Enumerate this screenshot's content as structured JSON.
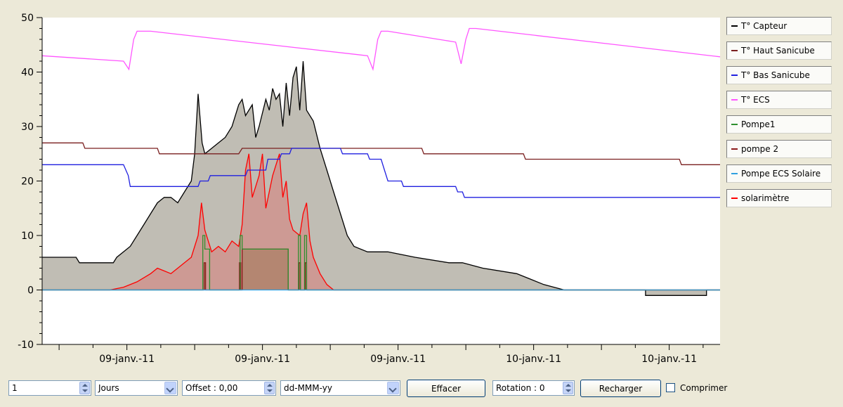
{
  "chart_data": {
    "type": "line",
    "title": "",
    "xlabel": "",
    "ylabel": "",
    "ylim": [
      -10,
      50
    ],
    "yticks": [
      -10,
      0,
      10,
      20,
      30,
      40,
      50
    ],
    "xlim": [
      0,
      100
    ],
    "xtick_labels": [
      {
        "x": 12.5,
        "label": "09-janv.-11"
      },
      {
        "x": 32.5,
        "label": "09-janv.-11"
      },
      {
        "x": 52.5,
        "label": "09-janv.-11"
      },
      {
        "x": 72.5,
        "label": "10-janv.-11"
      },
      {
        "x": 92.5,
        "label": "10-janv.-11"
      }
    ],
    "grid": false,
    "legend_position": "right",
    "series": [
      {
        "name": "T° Capteur",
        "color": "#000000",
        "fill": "#c0bdb4",
        "points": [
          [
            0,
            6
          ],
          [
            5,
            6
          ],
          [
            5.5,
            5
          ],
          [
            10.5,
            5
          ],
          [
            11,
            6
          ],
          [
            12,
            7
          ],
          [
            13,
            8
          ],
          [
            14,
            10
          ],
          [
            15,
            12
          ],
          [
            16,
            14
          ],
          [
            17,
            16
          ],
          [
            18,
            17
          ],
          [
            19,
            17
          ],
          [
            20,
            16
          ],
          [
            21,
            18
          ],
          [
            22,
            20
          ],
          [
            22.5,
            25
          ],
          [
            23,
            36
          ],
          [
            23.6,
            27
          ],
          [
            24,
            25
          ],
          [
            25,
            26
          ],
          [
            26,
            27
          ],
          [
            27,
            28
          ],
          [
            28,
            30
          ],
          [
            29,
            34
          ],
          [
            29.5,
            35
          ],
          [
            30,
            32
          ],
          [
            31,
            34
          ],
          [
            31.5,
            28
          ],
          [
            32,
            30
          ],
          [
            33,
            35
          ],
          [
            33.5,
            33
          ],
          [
            34,
            37
          ],
          [
            34.5,
            35
          ],
          [
            35,
            36
          ],
          [
            35.5,
            30
          ],
          [
            36,
            38
          ],
          [
            36.5,
            32
          ],
          [
            37,
            39
          ],
          [
            37.5,
            41
          ],
          [
            38,
            33
          ],
          [
            38.5,
            42
          ],
          [
            39,
            33
          ],
          [
            40,
            31
          ],
          [
            41,
            26
          ],
          [
            42,
            22
          ],
          [
            43,
            18
          ],
          [
            44,
            14
          ],
          [
            45,
            10
          ],
          [
            46,
            8
          ],
          [
            48,
            7
          ],
          [
            51,
            7
          ],
          [
            55,
            6
          ],
          [
            60,
            5
          ],
          [
            62,
            5
          ],
          [
            65,
            4
          ],
          [
            70,
            3
          ],
          [
            72,
            2
          ],
          [
            74,
            1
          ],
          [
            77,
            0
          ],
          [
            89,
            0
          ],
          [
            89,
            -1
          ],
          [
            98,
            -1
          ],
          [
            98,
            0
          ],
          [
            100,
            0
          ]
        ]
      },
      {
        "name": "T° Haut Sanicube",
        "color": "#7a1f1f",
        "fill": null,
        "points": [
          [
            0,
            27
          ],
          [
            6,
            27
          ],
          [
            6.3,
            26
          ],
          [
            17,
            26
          ],
          [
            17.3,
            25
          ],
          [
            29,
            25
          ],
          [
            29.5,
            26
          ],
          [
            56,
            26
          ],
          [
            56.3,
            25
          ],
          [
            71,
            25
          ],
          [
            71.3,
            24
          ],
          [
            94,
            24
          ],
          [
            94.3,
            23
          ],
          [
            100,
            23
          ]
        ]
      },
      {
        "name": "T° Bas Sanicube",
        "color": "#2020e0",
        "fill": null,
        "points": [
          [
            0,
            23
          ],
          [
            12,
            23
          ],
          [
            12.7,
            21
          ],
          [
            13,
            19
          ],
          [
            15,
            19
          ],
          [
            15.3,
            19
          ],
          [
            23,
            19
          ],
          [
            23.3,
            20
          ],
          [
            24.5,
            20
          ],
          [
            24.8,
            21
          ],
          [
            30,
            21
          ],
          [
            30.3,
            22
          ],
          [
            33,
            22
          ],
          [
            33.3,
            24
          ],
          [
            35,
            24
          ],
          [
            35.3,
            25
          ],
          [
            36.5,
            25
          ],
          [
            36.8,
            26
          ],
          [
            44,
            26
          ],
          [
            44.3,
            25
          ],
          [
            48,
            25
          ],
          [
            48.3,
            24
          ],
          [
            50,
            24
          ],
          [
            50.5,
            22
          ],
          [
            51,
            20
          ],
          [
            53,
            20
          ],
          [
            53.3,
            19
          ],
          [
            61,
            19
          ],
          [
            61.3,
            18
          ],
          [
            62,
            18
          ],
          [
            62.3,
            17
          ],
          [
            100,
            17
          ]
        ]
      },
      {
        "name": "T° ECS",
        "color": "#ff55ff",
        "fill": null,
        "points": [
          [
            0,
            43
          ],
          [
            12,
            42
          ],
          [
            12.8,
            40.5
          ],
          [
            13.5,
            46
          ],
          [
            14,
            47.5
          ],
          [
            16,
            47.5
          ],
          [
            48,
            43
          ],
          [
            48.8,
            40.5
          ],
          [
            49.5,
            46
          ],
          [
            50,
            47.5
          ],
          [
            51,
            47.5
          ],
          [
            61,
            45.5
          ],
          [
            61.8,
            41.5
          ],
          [
            62.5,
            46
          ],
          [
            63,
            48
          ],
          [
            64,
            48
          ],
          [
            100,
            42.8
          ]
        ]
      },
      {
        "name": "Pompe1",
        "color": "#2f8f2f",
        "fill": null,
        "points": [
          [
            0,
            0
          ],
          [
            23.7,
            0
          ],
          [
            23.7,
            10
          ],
          [
            24,
            10
          ],
          [
            24,
            7.5
          ],
          [
            24.7,
            7.5
          ],
          [
            24.7,
            0
          ],
          [
            29.2,
            0
          ],
          [
            29.2,
            10
          ],
          [
            29.5,
            10
          ],
          [
            29.5,
            7.5
          ],
          [
            36.3,
            7.5
          ],
          [
            36.3,
            0
          ],
          [
            37.8,
            0
          ],
          [
            37.8,
            10
          ],
          [
            38.1,
            10
          ],
          [
            38.1,
            0
          ],
          [
            38.7,
            0
          ],
          [
            38.7,
            10
          ],
          [
            39,
            10
          ],
          [
            39,
            0
          ],
          [
            100,
            0
          ]
        ]
      },
      {
        "name": "pompe 2",
        "color": "#8b1a1a",
        "fill": "rgba(150,110,70,0.45)",
        "points": [
          [
            0,
            0
          ],
          [
            23.9,
            0
          ],
          [
            23.9,
            5
          ],
          [
            24.1,
            5
          ],
          [
            24.1,
            0
          ],
          [
            29.1,
            0
          ],
          [
            29.1,
            5
          ],
          [
            29.3,
            5
          ],
          [
            29.3,
            0
          ],
          [
            29.5,
            0
          ],
          [
            29.5,
            7.5
          ],
          [
            36.3,
            7.5
          ],
          [
            36.3,
            0
          ],
          [
            37.9,
            0
          ],
          [
            37.9,
            5
          ],
          [
            38.1,
            5
          ],
          [
            38.1,
            0
          ],
          [
            38.8,
            0
          ],
          [
            38.8,
            5
          ],
          [
            39,
            5
          ],
          [
            39,
            0
          ],
          [
            100,
            0
          ]
        ]
      },
      {
        "name": "Pompe ECS Solaire",
        "color": "#30a0e0",
        "fill": null,
        "points": [
          [
            0,
            0
          ],
          [
            100,
            0
          ]
        ]
      },
      {
        "name": "solarimètre",
        "color": "#ff0000",
        "fill": "rgba(230,90,90,0.35)",
        "points": [
          [
            0,
            0
          ],
          [
            10,
            0
          ],
          [
            12,
            0.5
          ],
          [
            14,
            1.5
          ],
          [
            16,
            3
          ],
          [
            17,
            4
          ],
          [
            18,
            3.5
          ],
          [
            19,
            3
          ],
          [
            20,
            4
          ],
          [
            21,
            5
          ],
          [
            22,
            6
          ],
          [
            23,
            10
          ],
          [
            23.5,
            16
          ],
          [
            24,
            11
          ],
          [
            25,
            7
          ],
          [
            26,
            8
          ],
          [
            27,
            7
          ],
          [
            28,
            9
          ],
          [
            29,
            8
          ],
          [
            29.5,
            12
          ],
          [
            30,
            22
          ],
          [
            30.5,
            25
          ],
          [
            31,
            17
          ],
          [
            32,
            21
          ],
          [
            32.5,
            25
          ],
          [
            33,
            15
          ],
          [
            34,
            21
          ],
          [
            35,
            25
          ],
          [
            35.5,
            17
          ],
          [
            36,
            20
          ],
          [
            36.5,
            13
          ],
          [
            37,
            11
          ],
          [
            38,
            10
          ],
          [
            38.5,
            14
          ],
          [
            39,
            16
          ],
          [
            39.5,
            9
          ],
          [
            40,
            6
          ],
          [
            41,
            3
          ],
          [
            42,
            1
          ],
          [
            43,
            0
          ],
          [
            100,
            0
          ]
        ]
      }
    ]
  },
  "toolbar": {
    "period_value": "1",
    "period_unit": "Jours",
    "offset_label": "Offset : 0,00",
    "date_format": "dd-MMM-yy",
    "clear_label": "Effacer",
    "rotation_label": "Rotation : 0",
    "reload_label": "Recharger",
    "compress_label": "Comprimer"
  }
}
